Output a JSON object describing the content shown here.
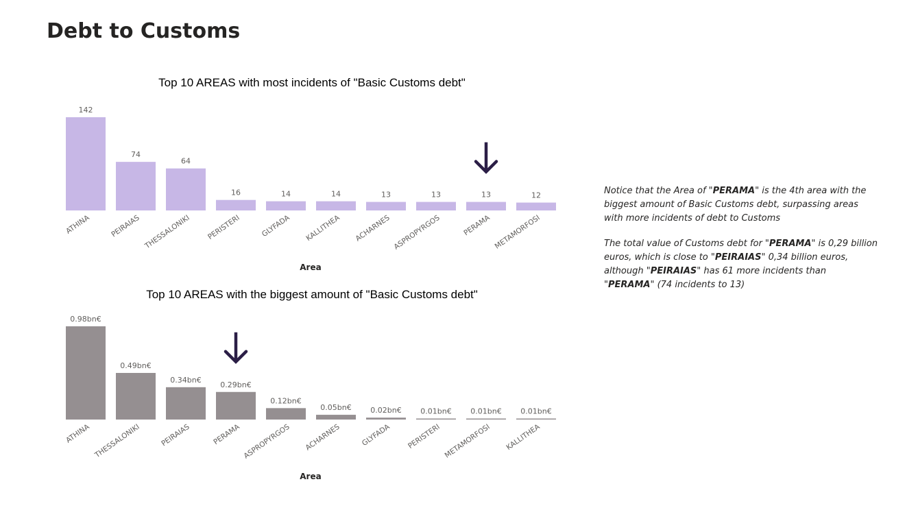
{
  "page": {
    "title": "Debt to Customs"
  },
  "annotations": {
    "note1": {
      "p1": "Notice that the Area of \"",
      "b1": "PERAMA",
      "p2": "\" is the 4th area with the biggest amount  of Basic Customs debt, surpassing areas with more incidents of debt to Customs"
    },
    "note2": {
      "p1": "The total value of Customs debt for \"",
      "b1": "PERAMA",
      "p2": "\" is 0,29 billion euros, which is close to \"",
      "b2": "PEIRAIAS",
      "p3": "\" 0,34 billion euros, although \"",
      "b3": "PEIRAIAS",
      "p4": "\" has 61 more incidents than \"",
      "b4": "PERAMA",
      "p5": "\" (74 incidents to 13)"
    }
  },
  "colors": {
    "incidents_bar": "#C7B7E6",
    "amount_bar": "#958F91",
    "arrow": "#2B1E46"
  },
  "chart_data": [
    {
      "type": "bar",
      "title": "Top 10 AREAS with most incidents of \"Basic Customs debt\"",
      "xlabel": "Area",
      "ylabel": "",
      "ylim": [
        0,
        142
      ],
      "categories": [
        "ATHINA",
        "PEIRAIAS",
        "THESSALONIKI",
        "PERISTERI",
        "GLYFADA",
        "KALLITHEA",
        "ACHARNES",
        "ASPROPYRGOS",
        "PERAMA",
        "METAMORFOSI"
      ],
      "values": [
        142,
        74,
        64,
        16,
        14,
        14,
        13,
        13,
        13,
        12
      ],
      "data_labels": [
        "142",
        "74",
        "64",
        "16",
        "14",
        "14",
        "13",
        "13",
        "13",
        "12"
      ],
      "highlight": "PERAMA",
      "grid": false,
      "icon": "down-arrow-icon"
    },
    {
      "type": "bar",
      "title": "Top 10 AREAS with the biggest amount of \"Basic Customs debt\"",
      "xlabel": "Area",
      "ylabel": "",
      "ylim": [
        0,
        0.98
      ],
      "categories": [
        "ATHINA",
        "THESSALONIKI",
        "PEIRAIAS",
        "PERAMA",
        "ASPROPYRGOS",
        "ACHARNES",
        "GLYFADA",
        "PERISTERI",
        "METAMORFOSI",
        "KALLITHEA"
      ],
      "values": [
        0.98,
        0.49,
        0.34,
        0.29,
        0.12,
        0.05,
        0.02,
        0.01,
        0.01,
        0.01
      ],
      "data_labels": [
        "0.98bn€",
        "0.49bn€",
        "0.34bn€",
        "0.29bn€",
        "0.12bn€",
        "0.05bn€",
        "0.02bn€",
        "0.01bn€",
        "0.01bn€",
        "0.01bn€"
      ],
      "highlight": "PERAMA",
      "grid": false,
      "icon": "down-arrow-icon"
    }
  ]
}
